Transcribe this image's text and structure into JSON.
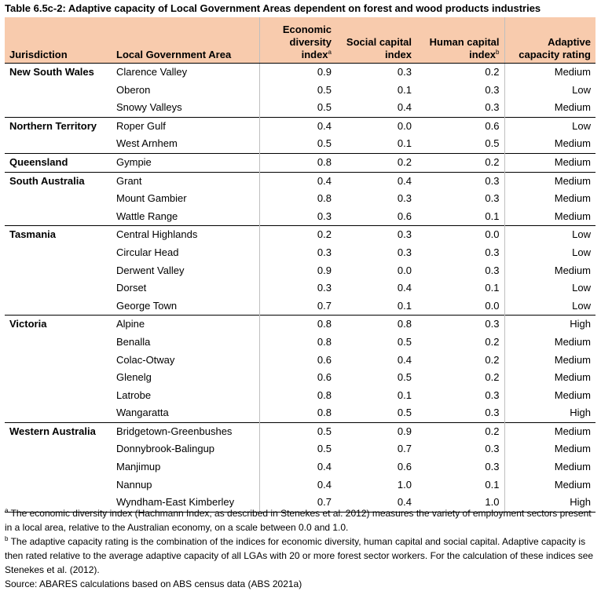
{
  "title": "Table 6.5c-2: Adaptive capacity of Local Government Areas dependent on forest and wood products industries",
  "table": {
    "columns": [
      {
        "text": "Jurisdiction"
      },
      {
        "text": "Local Government Area"
      },
      {
        "text": "Economic diversity index",
        "note": "a"
      },
      {
        "text": "Social capital index"
      },
      {
        "text": "Human capital index",
        "note": "b"
      },
      {
        "text": "Adaptive capacity rating"
      }
    ],
    "groups": [
      {
        "jurisdiction": "New South Wales",
        "rows": [
          [
            "Clarence Valley",
            "0.9",
            "0.3",
            "0.2",
            "Medium"
          ],
          [
            "Oberon",
            "0.5",
            "0.1",
            "0.3",
            "Low"
          ],
          [
            "Snowy Valleys",
            "0.5",
            "0.4",
            "0.3",
            "Medium"
          ]
        ]
      },
      {
        "jurisdiction": "Northern Territory",
        "rows": [
          [
            "Roper Gulf",
            "0.4",
            "0.0",
            "0.6",
            "Low"
          ],
          [
            "West Arnhem",
            "0.5",
            "0.1",
            "0.5",
            "Medium"
          ]
        ]
      },
      {
        "jurisdiction": "Queensland",
        "rows": [
          [
            "Gympie",
            "0.8",
            "0.2",
            "0.2",
            "Medium"
          ]
        ]
      },
      {
        "jurisdiction": "South Australia",
        "rows": [
          [
            "Grant",
            "0.4",
            "0.4",
            "0.3",
            "Medium"
          ],
          [
            "Mount Gambier",
            "0.8",
            "0.3",
            "0.3",
            "Medium"
          ],
          [
            "Wattle Range",
            "0.3",
            "0.6",
            "0.1",
            "Medium"
          ]
        ]
      },
      {
        "jurisdiction": "Tasmania",
        "rows": [
          [
            "Central Highlands",
            "0.2",
            "0.3",
            "0.0",
            "Low"
          ],
          [
            "Circular Head",
            "0.3",
            "0.3",
            "0.3",
            "Low"
          ],
          [
            "Derwent Valley",
            "0.9",
            "0.0",
            "0.3",
            "Medium"
          ],
          [
            "Dorset",
            "0.3",
            "0.4",
            "0.1",
            "Low"
          ],
          [
            "George Town",
            "0.7",
            "0.1",
            "0.0",
            "Low"
          ]
        ]
      },
      {
        "jurisdiction": "Victoria",
        "rows": [
          [
            "Alpine",
            "0.8",
            "0.8",
            "0.3",
            "High"
          ],
          [
            "Benalla",
            "0.8",
            "0.5",
            "0.2",
            "Medium"
          ],
          [
            "Colac-Otway",
            "0.6",
            "0.4",
            "0.2",
            "Medium"
          ],
          [
            "Glenelg",
            "0.6",
            "0.5",
            "0.2",
            "Medium"
          ],
          [
            "Latrobe",
            "0.8",
            "0.1",
            "0.3",
            "Medium"
          ],
          [
            "Wangaratta",
            "0.8",
            "0.5",
            "0.3",
            "High"
          ]
        ]
      },
      {
        "jurisdiction": "Western Australia",
        "rows": [
          [
            "Bridgetown-Greenbushes",
            "0.5",
            "0.9",
            "0.2",
            "Medium"
          ],
          [
            "Donnybrook-Balingup",
            "0.5",
            "0.7",
            "0.3",
            "Medium"
          ],
          [
            "Manjimup",
            "0.4",
            "0.6",
            "0.3",
            "Medium"
          ],
          [
            "Nannup",
            "0.4",
            "1.0",
            "0.1",
            "Medium"
          ],
          [
            "Wyndham-East Kimberley",
            "0.7",
            "0.4",
            "1.0",
            "High"
          ]
        ]
      }
    ]
  },
  "footnotes": [
    {
      "marker": "a",
      "text": "The economic diversity index (Hachmann Index, as described in Stenekes et al. 2012) measures the variety of employment sectors present in a local area, relative to the Australian economy, on a scale between 0.0 and 1.0."
    },
    {
      "marker": "b",
      "text": "The adaptive capacity rating is the combination of the indices for economic diversity, human capital and social capital. Adaptive capacity is then rated relative to the average adaptive capacity of all LGAs with 20 or more forest sector workers. For the calculation of these indices see Stenekes et al. (2012)."
    }
  ],
  "source": "Source: ABARES calculations based on ABS census data (ABS 2021a)"
}
